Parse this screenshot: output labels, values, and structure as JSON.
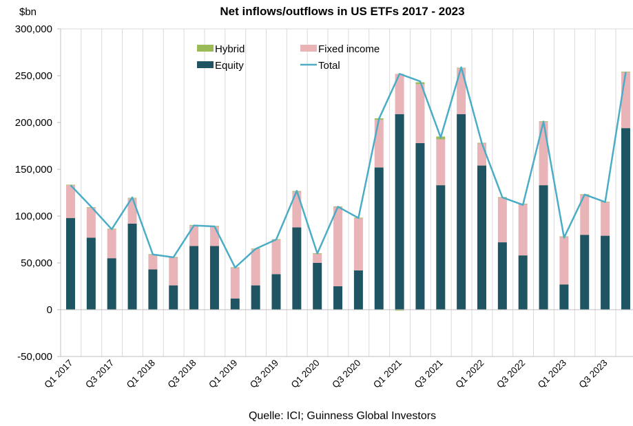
{
  "chart_data": {
    "type": "bar",
    "title": "Net inflows/outflows in US ETFs 2017 - 2023",
    "ylabel": "$bn",
    "source": "Quelle: ICI; Guinness Global Investors",
    "ylim": [
      -50000,
      300000
    ],
    "yticks": [
      -50000,
      0,
      50000,
      100000,
      150000,
      200000,
      250000,
      300000
    ],
    "ytick_labels": [
      "-50,000",
      "0",
      "50,000",
      "100,000",
      "150,000",
      "200,000",
      "250,000",
      "300,000"
    ],
    "grid": "vertical",
    "legend_position": "top-left",
    "categories": [
      "Q1 2017",
      "Q2 2017",
      "Q3 2017",
      "Q4 2017",
      "Q1 2018",
      "Q2 2018",
      "Q3 2018",
      "Q4 2018",
      "Q1 2019",
      "Q2 2019",
      "Q3 2019",
      "Q4 2019",
      "Q1 2020",
      "Q2 2020",
      "Q3 2020",
      "Q4 2020",
      "Q1 2021",
      "Q2 2021",
      "Q3 2021",
      "Q4 2021",
      "Q1 2022",
      "Q2 2022",
      "Q3 2022",
      "Q4 2022",
      "Q1 2023",
      "Q2 2023",
      "Q3 2023",
      "Q4 2023"
    ],
    "x_tick_labels": [
      "Q1 2017",
      "Q3 2017",
      "Q1 2018",
      "Q3 2018",
      "Q1 2019",
      "Q3 2019",
      "Q1 2020",
      "Q3 2020",
      "Q1 2021",
      "Q3 2021",
      "Q1 2022",
      "Q3 2022",
      "Q1 2023",
      "Q3 2023"
    ],
    "stacked": true,
    "series": [
      {
        "name": "Equity",
        "kind": "bar",
        "color": "#1f5563",
        "values": [
          98000,
          77000,
          55000,
          92000,
          43000,
          26000,
          68000,
          68000,
          12000,
          26000,
          38000,
          88000,
          50000,
          25000,
          42000,
          152000,
          209000,
          178000,
          133000,
          209000,
          154000,
          72000,
          58000,
          133000,
          27000,
          80000,
          79000,
          194000
        ]
      },
      {
        "name": "Fixed income",
        "kind": "bar",
        "color": "#e8b4b8",
        "values": [
          35000,
          32000,
          31000,
          27000,
          16000,
          30000,
          22000,
          21000,
          33000,
          39000,
          37000,
          38000,
          10000,
          85000,
          56000,
          51000,
          43000,
          63000,
          49000,
          49000,
          24000,
          48000,
          55000,
          68000,
          51000,
          43000,
          36000,
          60000
        ]
      },
      {
        "name": "Hybrid",
        "kind": "bar",
        "color": "#9bbb59",
        "values": [
          500,
          500,
          500,
          500,
          300,
          300,
          500,
          500,
          300,
          300,
          300,
          800,
          300,
          300,
          300,
          1500,
          -1000,
          2000,
          3000,
          500,
          300,
          300,
          300,
          300,
          300,
          300,
          300,
          300
        ]
      },
      {
        "name": "Total",
        "kind": "line",
        "color": "#4bacc6",
        "values": [
          133000,
          110000,
          86000,
          120000,
          59000,
          56000,
          90000,
          89000,
          45000,
          65000,
          75000,
          127000,
          60000,
          110000,
          98000,
          204000,
          252000,
          244000,
          184000,
          259000,
          178000,
          120000,
          112000,
          201000,
          77000,
          123000,
          115000,
          254000
        ]
      }
    ],
    "legend": [
      {
        "name": "Hybrid",
        "color": "#9bbb59",
        "marker": "box"
      },
      {
        "name": "Fixed income",
        "color": "#e8b4b8",
        "marker": "box"
      },
      {
        "name": "Equity",
        "color": "#1f5563",
        "marker": "box"
      },
      {
        "name": "Total",
        "color": "#4bacc6",
        "marker": "line"
      }
    ]
  }
}
